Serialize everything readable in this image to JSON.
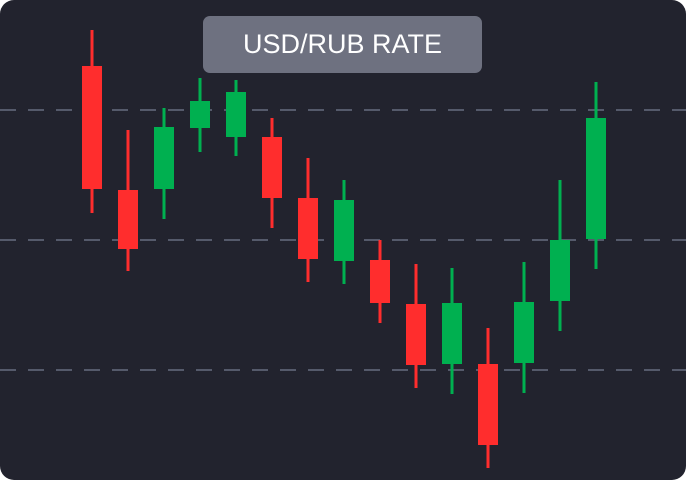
{
  "chart_data": {
    "type": "candlestick",
    "title": "USD/RUB RATE",
    "open": [
      414,
      290,
      291,
      352,
      343,
      343,
      282,
      219,
      220,
      176,
      116,
      116,
      117,
      179,
      241
    ],
    "high": [
      450,
      350,
      372,
      402,
      400,
      362,
      322,
      300,
      240,
      216,
      212,
      152,
      218,
      300,
      398
    ],
    "low": [
      267,
      209,
      261,
      328,
      324,
      252,
      198,
      196,
      157,
      92,
      86,
      12,
      87,
      149,
      211
    ],
    "close": [
      291,
      231,
      353,
      379,
      388,
      282,
      221,
      280,
      177,
      115,
      177,
      35,
      178,
      240,
      362
    ],
    "up_color": "#00b050",
    "down_color": "#ff2d2d",
    "ylim": [
      0,
      480
    ],
    "yticks": [
      110,
      240,
      370
    ],
    "grid": true,
    "show_tick_labels": false
  }
}
